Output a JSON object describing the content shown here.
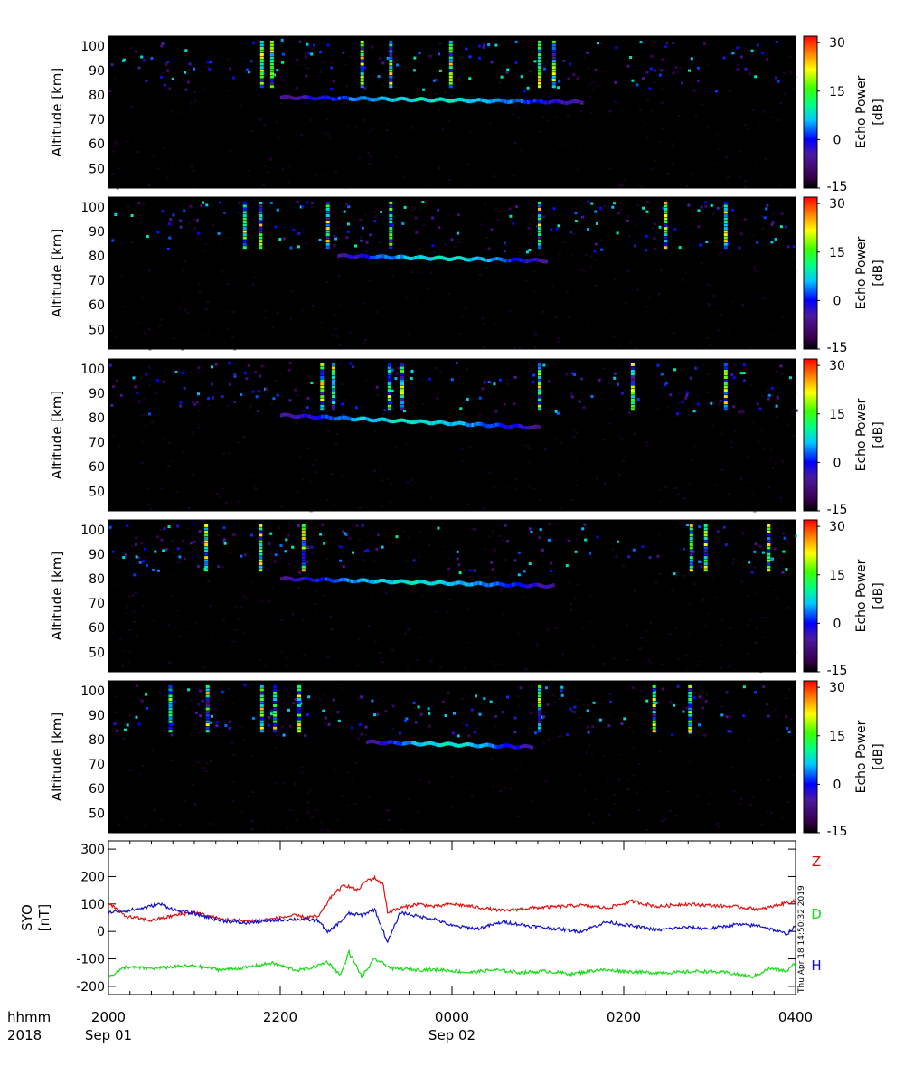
{
  "chart_data": [
    {
      "type": "heatmap",
      "panel": 1,
      "ylabel": "Altitude [km]",
      "ylim": [
        42,
        104
      ],
      "yticks": [
        50,
        60,
        70,
        80,
        90,
        100
      ],
      "colorbar": {
        "label_line1": "Echo Power",
        "label_line2": "[dB]",
        "range": [
          -15,
          32
        ],
        "ticks": [
          -15,
          0,
          15,
          30
        ]
      },
      "main_layer": {
        "start": "22:00",
        "end": "01:30",
        "alt_start": 79,
        "alt_end": 77
      },
      "echo_columns": [
        "21:46",
        "21:53",
        "22:56",
        "23:16",
        "23:58",
        "01:00",
        "01:10"
      ]
    },
    {
      "type": "heatmap",
      "panel": 2,
      "ylabel": "Altitude [km]",
      "ylim": [
        42,
        104
      ],
      "yticks": [
        50,
        60,
        70,
        80,
        90,
        100
      ],
      "colorbar": {
        "label_line1": "Echo Power",
        "label_line2": "[dB]",
        "range": [
          -15,
          32
        ],
        "ticks": [
          -15,
          0,
          15,
          30
        ]
      },
      "main_layer": {
        "start": "22:40",
        "end": "01:05",
        "alt_start": 80,
        "alt_end": 78
      },
      "echo_columns": [
        "21:34",
        "21:45",
        "22:32",
        "23:16",
        "01:00",
        "02:28",
        "03:10"
      ]
    },
    {
      "type": "heatmap",
      "panel": 3,
      "ylabel": "Altitude [km]",
      "ylim": [
        42,
        104
      ],
      "yticks": [
        50,
        60,
        70,
        80,
        90,
        100
      ],
      "colorbar": {
        "label_line1": "Echo Power",
        "label_line2": "[dB]",
        "range": [
          -15,
          32
        ],
        "ticks": [
          -15,
          0,
          15,
          30
        ]
      },
      "main_layer": {
        "start": "22:00",
        "end": "01:00",
        "alt_start": 81,
        "alt_end": 76
      },
      "echo_columns": [
        "22:28",
        "22:36",
        "23:15",
        "23:24",
        "01:00",
        "02:05",
        "03:10"
      ]
    },
    {
      "type": "heatmap",
      "panel": 4,
      "ylabel": "Altitude [km]",
      "ylim": [
        42,
        104
      ],
      "yticks": [
        50,
        60,
        70,
        80,
        90,
        100
      ],
      "colorbar": {
        "label_line1": "Echo Power",
        "label_line2": "[dB]",
        "range": [
          -15,
          32
        ],
        "ticks": [
          -15,
          0,
          15,
          30
        ]
      },
      "main_layer": {
        "start": "22:00",
        "end": "01:10",
        "alt_start": 80,
        "alt_end": 77
      },
      "echo_columns": [
        "21:07",
        "21:45",
        "22:15",
        "02:46",
        "02:56",
        "03:40"
      ]
    },
    {
      "type": "heatmap",
      "panel": 5,
      "ylabel": "Altitude [km]",
      "ylim": [
        42,
        104
      ],
      "yticks": [
        50,
        60,
        70,
        80,
        90,
        100
      ],
      "colorbar": {
        "label_line1": "Echo Power",
        "label_line2": "[dB]",
        "range": [
          -15,
          32
        ],
        "ticks": [
          -15,
          0,
          15,
          30
        ]
      },
      "main_layer": {
        "start": "23:00",
        "end": "00:55",
        "alt_start": 79,
        "alt_end": 77
      },
      "echo_columns": [
        "20:42",
        "21:08",
        "21:46",
        "21:55",
        "22:12",
        "01:00",
        "02:20",
        "02:45"
      ]
    },
    {
      "type": "line",
      "ylabel_line1": "SYO",
      "ylabel_line2": "[nT]",
      "ylim": [
        -230,
        330
      ],
      "yticks": [
        -200,
        -100,
        0,
        100,
        200,
        300
      ],
      "series": [
        {
          "name": "Z",
          "color": "#e01010",
          "hours": [
            20.0,
            20.2,
            20.5,
            20.8,
            21.0,
            21.3,
            21.6,
            21.9,
            22.15,
            22.3,
            22.45,
            22.6,
            22.75,
            22.9,
            23.0,
            23.1,
            23.2,
            23.25,
            23.4,
            23.6,
            23.8,
            24.0,
            24.3,
            24.6,
            24.9,
            25.2,
            25.5,
            25.8,
            26.1,
            26.4,
            26.7,
            27.0,
            27.3,
            27.6,
            27.9,
            28.0
          ],
          "values": [
            105,
            55,
            40,
            60,
            70,
            45,
            38,
            45,
            58,
            52,
            55,
            130,
            170,
            150,
            185,
            195,
            170,
            70,
            85,
            100,
            90,
            100,
            88,
            75,
            85,
            90,
            95,
            85,
            110,
            90,
            100,
            95,
            90,
            80,
            105,
            110
          ]
        },
        {
          "name": "D",
          "color": "#10dd10",
          "hours": [
            20.0,
            20.2,
            20.5,
            20.8,
            21.0,
            21.3,
            21.6,
            21.9,
            22.2,
            22.4,
            22.55,
            22.7,
            22.8,
            22.95,
            23.1,
            23.3,
            23.6,
            23.9,
            24.2,
            24.5,
            24.8,
            25.1,
            25.4,
            25.7,
            26.0,
            26.3,
            26.6,
            26.9,
            27.2,
            27.5,
            27.7,
            27.9,
            28.0
          ],
          "values": [
            -165,
            -130,
            -135,
            -128,
            -125,
            -140,
            -132,
            -115,
            -142,
            -130,
            -110,
            -160,
            -75,
            -165,
            -100,
            -135,
            -140,
            -140,
            -150,
            -140,
            -150,
            -145,
            -155,
            -140,
            -145,
            -150,
            -150,
            -145,
            -150,
            -165,
            -135,
            -145,
            -115
          ]
        },
        {
          "name": "H",
          "color": "#1010cc",
          "hours": [
            20.0,
            20.2,
            20.4,
            20.6,
            20.8,
            21.0,
            21.3,
            21.6,
            21.9,
            22.2,
            22.45,
            22.55,
            22.7,
            22.8,
            22.95,
            23.1,
            23.25,
            23.4,
            23.6,
            23.8,
            24.0,
            24.3,
            24.6,
            24.9,
            25.2,
            25.5,
            25.8,
            26.1,
            26.4,
            26.7,
            27.0,
            27.3,
            27.6,
            27.9,
            28.0
          ],
          "values": [
            70,
            75,
            85,
            100,
            75,
            65,
            40,
            30,
            40,
            45,
            40,
            -5,
            35,
            65,
            60,
            80,
            -40,
            70,
            55,
            45,
            20,
            10,
            35,
            20,
            10,
            0,
            35,
            20,
            5,
            15,
            10,
            25,
            20,
            -10,
            20
          ]
        }
      ]
    }
  ],
  "xaxis": {
    "time_label_line1": "hhmm",
    "time_label_line2": "2018",
    "range_hours": [
      20,
      28
    ],
    "ticks": [
      {
        "hour": 20,
        "label": "2000",
        "date": "Sep 01"
      },
      {
        "hour": 22,
        "label": "2200",
        "date": ""
      },
      {
        "hour": 24,
        "label": "0000",
        "date": "Sep 02"
      },
      {
        "hour": 26,
        "label": "0200",
        "date": ""
      },
      {
        "hour": 28,
        "label": "0400",
        "date": ""
      }
    ]
  },
  "legend_letters": [
    {
      "text": "Z",
      "color": "#e01010"
    },
    {
      "text": "D",
      "color": "#10dd10"
    },
    {
      "text": "H",
      "color": "#1010cc"
    }
  ],
  "timestamp": "Thu Apr 18 14:50:32 2019"
}
